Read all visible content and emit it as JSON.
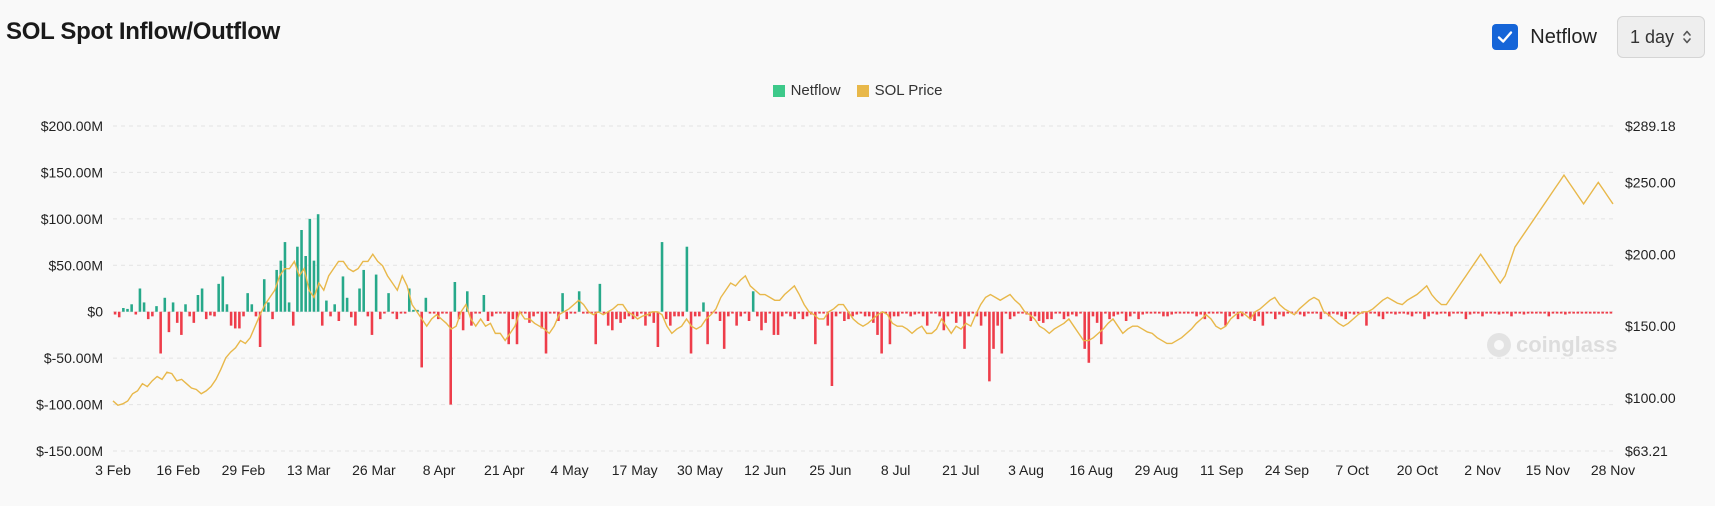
{
  "title": "SOL Spot Inflow/Outflow",
  "controls": {
    "netflow_checkbox_label": "Netflow",
    "netflow_checked": true,
    "interval_value": "1 day"
  },
  "watermark": "coinglass",
  "chart_data": {
    "type": "bar",
    "legend": [
      {
        "name": "Netflow",
        "color": "#3dc98a"
      },
      {
        "name": "SOL Price",
        "color": "#e8b84a"
      }
    ],
    "legend_position": "top-center",
    "grid": "horizontal dashed",
    "x_ticks": [
      "3 Feb",
      "16 Feb",
      "29 Feb",
      "13 Mar",
      "26 Mar",
      "8 Apr",
      "21 Apr",
      "4 May",
      "17 May",
      "30 May",
      "12 Jun",
      "25 Jun",
      "8 Jul",
      "21 Jul",
      "3 Aug",
      "16 Aug",
      "29 Aug",
      "11 Sep",
      "24 Sep",
      "7 Oct",
      "20 Oct",
      "2 Nov",
      "15 Nov",
      "28 Nov"
    ],
    "y_left": {
      "ticks": [
        "$200.00M",
        "$150.00M",
        "$100.00M",
        "$50.00M",
        "$0",
        "$-50.00M",
        "$-100.00M",
        "$-150.00M"
      ],
      "range": [
        -150,
        200
      ],
      "unit": "M USD"
    },
    "y_right": {
      "ticks": [
        "$289.18",
        "$250.00",
        "$200.00",
        "$150.00",
        "$100.00",
        "$63.21"
      ],
      "range": [
        63.21,
        289.18
      ]
    },
    "series": [
      {
        "name": "Netflow",
        "colors": {
          "positive": "#27a98a",
          "negative": "#ee3d4a"
        },
        "values": [
          -3,
          -6,
          4,
          3,
          8,
          -3,
          25,
          10,
          -8,
          -5,
          6,
          -45,
          15,
          -22,
          10,
          -12,
          -25,
          8,
          -5,
          -12,
          18,
          25,
          -8,
          -4,
          -5,
          30,
          38,
          8,
          -15,
          -18,
          -18,
          -5,
          20,
          8,
          -5,
          -38,
          35,
          10,
          -8,
          45,
          55,
          75,
          10,
          -15,
          70,
          88,
          60,
          100,
          55,
          105,
          -15,
          12,
          -5,
          8,
          -10,
          38,
          15,
          -6,
          -15,
          25,
          45,
          -5,
          -25,
          40,
          -8,
          -2,
          20,
          -2,
          -8,
          -2,
          -2,
          25,
          2,
          2,
          -60,
          15,
          -2,
          -2,
          -8,
          -2,
          -2,
          -100,
          32,
          -8,
          -20,
          22,
          -15,
          -2,
          -2,
          18,
          -10,
          -5,
          -2,
          -2,
          -2,
          -35,
          -8,
          -35,
          -2,
          -2,
          -12,
          -5,
          -2,
          -18,
          -45,
          -2,
          -2,
          -10,
          20,
          -8,
          -2,
          -2,
          22,
          -2,
          -2,
          -2,
          -35,
          30,
          -2,
          -15,
          -20,
          -8,
          -12,
          -8,
          -5,
          -8,
          -5,
          -2,
          -15,
          -5,
          -12,
          -38,
          75,
          -8,
          -15,
          -5,
          -5,
          -5,
          70,
          -45,
          -5,
          -5,
          10,
          -35,
          -2,
          -2,
          -10,
          -40,
          -5,
          -2,
          -15,
          -5,
          -2,
          -10,
          22,
          -5,
          -20,
          -12,
          -2,
          -25,
          -25,
          -5,
          -2,
          -5,
          -8,
          -2,
          -8,
          -5,
          -3,
          -35,
          -2,
          -2,
          -15,
          -80,
          -5,
          -2,
          -10,
          -8,
          -5,
          -3,
          -2,
          -5,
          -5,
          -12,
          -25,
          -45,
          -2,
          -35,
          -5,
          -5,
          -2,
          -2,
          -5,
          -3,
          -2,
          -5,
          -15,
          -2,
          -2,
          -5,
          -20,
          -5,
          -2,
          -12,
          -5,
          -40,
          -5,
          -2,
          -5,
          -15,
          -5,
          -75,
          -40,
          -15,
          -45,
          -2,
          -8,
          -5,
          -2,
          -2,
          -3,
          -10,
          -5,
          -10,
          -12,
          -8,
          -8,
          -2,
          -2,
          -8,
          -5,
          -3,
          -5,
          -2,
          -40,
          -55,
          -5,
          -12,
          -35,
          -2,
          -8,
          -5,
          -3,
          -2,
          -10,
          -5,
          -2,
          -8,
          -3,
          -2,
          -2,
          -2,
          -2,
          -5,
          -5,
          -3,
          -2,
          -2,
          -2,
          -2,
          -2,
          -5,
          -3,
          -8,
          -2,
          -2,
          -2,
          -2,
          -15,
          -5,
          -2,
          -8,
          -5,
          -2,
          -8,
          -10,
          -5,
          -15,
          -2,
          -2,
          -8,
          -3,
          -5,
          -2,
          -2,
          -2,
          -3,
          -5,
          -2,
          -2,
          -2,
          -8,
          -2,
          -5,
          -2,
          -3,
          -5,
          -8,
          -2,
          -3,
          -2,
          -2,
          -15,
          -2,
          -2,
          -5,
          -8,
          -2,
          -2,
          -3,
          -2,
          -2,
          -3,
          -5,
          -2,
          -2,
          -8,
          -5,
          -2,
          -3,
          -2,
          -2,
          -5,
          -2,
          -2,
          -2,
          -8,
          -3,
          -2,
          -2,
          -5,
          -2,
          -2,
          -2,
          -3,
          -2,
          -2,
          -5,
          -2,
          -2,
          -3,
          -2,
          -2,
          -2,
          -2,
          -2,
          -5,
          -2,
          -2,
          -2,
          -3,
          -2,
          -2,
          -2,
          -2,
          -2,
          -2,
          -2,
          -2,
          -2,
          -2,
          -2
        ]
      },
      {
        "name": "SOL Price",
        "color": "#e8b84a",
        "values": [
          98,
          95,
          96,
          98,
          103,
          105,
          110,
          108,
          112,
          115,
          113,
          118,
          117,
          112,
          113,
          110,
          107,
          106,
          103,
          105,
          108,
          113,
          120,
          128,
          132,
          135,
          140,
          138,
          142,
          150,
          158,
          165,
          170,
          175,
          185,
          190,
          190,
          195,
          185,
          190,
          175,
          170,
          180,
          175,
          185,
          190,
          195,
          195,
          190,
          188,
          190,
          195,
          195,
          200,
          195,
          192,
          185,
          180,
          175,
          185,
          178,
          165,
          160,
          155,
          150,
          155,
          158,
          155,
          152,
          148,
          150,
          160,
          165,
          155,
          150,
          155,
          150,
          152,
          145,
          145,
          140,
          145,
          150,
          160,
          155,
          155,
          152,
          150,
          148,
          145,
          150,
          158,
          160,
          162,
          165,
          168,
          165,
          160,
          158,
          160,
          158,
          160,
          162,
          165,
          165,
          160,
          158,
          155,
          157,
          158,
          160,
          160,
          158,
          150,
          145,
          148,
          150,
          155,
          150,
          148,
          150,
          155,
          158,
          162,
          170,
          175,
          180,
          178,
          182,
          185,
          178,
          175,
          172,
          172,
          170,
          168,
          168,
          172,
          175,
          178,
          172,
          165,
          160,
          158,
          155,
          155,
          160,
          162,
          165,
          165,
          160,
          155,
          152,
          150,
          152,
          155,
          158,
          160,
          158,
          152,
          150,
          150,
          148,
          145,
          148,
          150,
          145,
          145,
          148,
          155,
          150,
          145,
          150,
          148,
          152,
          150,
          158,
          165,
          170,
          172,
          170,
          168,
          170,
          172,
          168,
          165,
          160,
          158,
          155,
          150,
          148,
          145,
          148,
          150,
          152,
          155,
          150,
          145,
          140,
          140,
          142,
          145,
          148,
          152,
          155,
          150,
          145,
          148,
          150,
          150,
          148,
          146,
          145,
          142,
          140,
          138,
          138,
          140,
          142,
          145,
          148,
          152,
          155,
          158,
          155,
          150,
          148,
          150,
          155,
          158,
          160,
          158,
          155,
          160,
          162,
          165,
          168,
          170,
          165,
          162,
          160,
          158,
          162,
          165,
          168,
          170,
          168,
          160,
          158,
          155,
          152,
          150,
          152,
          155,
          158,
          160,
          160,
          162,
          165,
          168,
          170,
          168,
          166,
          165,
          168,
          170,
          172,
          175,
          178,
          172,
          168,
          165,
          165,
          170,
          175,
          180,
          185,
          190,
          195,
          200,
          195,
          190,
          185,
          180,
          185,
          195,
          205,
          210,
          215,
          220,
          225,
          230,
          235,
          240,
          245,
          250,
          255,
          250,
          245,
          240,
          235,
          240,
          245,
          250,
          245,
          240,
          235
        ]
      }
    ]
  }
}
